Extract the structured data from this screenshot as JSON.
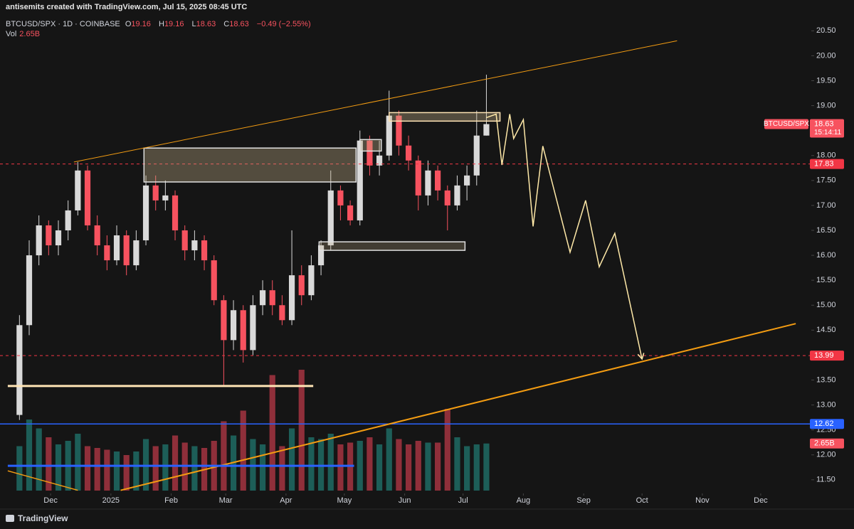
{
  "header": {
    "credit": "antisemits created with TradingView.com, Jul 15, 2025 08:45 UTC",
    "logo": "TradingView"
  },
  "chart_data": {
    "type": "candlestick",
    "title": "BTCUSD/SPX · 1D · COINBASE",
    "ohlc": [
      {
        "label": "O",
        "value": 19.16
      },
      {
        "label": "H",
        "value": 19.16
      },
      {
        "label": "L",
        "value": 18.63
      },
      {
        "label": "C",
        "value": 18.63
      }
    ],
    "change": "−0.49 (−2.55%)",
    "volume_label": "Vol",
    "volume_value": "2.65B",
    "x": [
      "2024-11-15",
      "2024-11-20",
      "2024-11-25",
      "2024-11-30",
      "2024-12-05",
      "2024-12-10",
      "2024-12-15",
      "2024-12-20",
      "2024-12-25",
      "2024-12-30",
      "2025-01-04",
      "2025-01-09",
      "2025-01-14",
      "2025-01-19",
      "2025-01-24",
      "2025-01-29",
      "2025-02-03",
      "2025-02-08",
      "2025-02-13",
      "2025-02-18",
      "2025-02-23",
      "2025-02-28",
      "2025-03-05",
      "2025-03-10",
      "2025-03-15",
      "2025-03-20",
      "2025-03-25",
      "2025-03-30",
      "2025-04-04",
      "2025-04-09",
      "2025-04-14",
      "2025-04-19",
      "2025-04-24",
      "2025-04-29",
      "2025-05-04",
      "2025-05-09",
      "2025-05-14",
      "2025-05-19",
      "2025-05-24",
      "2025-05-29",
      "2025-06-03",
      "2025-06-08",
      "2025-06-13",
      "2025-06-18",
      "2025-06-23",
      "2025-06-28",
      "2025-07-03",
      "2025-07-08",
      "2025-07-13"
    ],
    "opens": [
      12.8,
      14.6,
      16.0,
      16.6,
      16.2,
      16.5,
      16.9,
      17.7,
      16.6,
      16.2,
      15.9,
      16.4,
      15.8,
      16.3,
      17.4,
      17.1,
      17.2,
      16.5,
      16.1,
      16.3,
      15.9,
      15.1,
      14.3,
      14.9,
      14.1,
      15.0,
      15.3,
      15.0,
      14.7,
      15.6,
      15.2,
      15.8,
      16.2,
      17.3,
      17.0,
      16.7,
      18.3,
      17.8,
      18.0,
      18.8,
      18.2,
      17.9,
      17.2,
      17.7,
      17.3,
      17.0,
      17.4,
      17.6,
      18.4
    ],
    "highs": [
      14.8,
      16.3,
      16.8,
      16.7,
      16.7,
      17.1,
      17.87,
      17.8,
      16.8,
      16.4,
      16.6,
      16.5,
      16.5,
      17.6,
      17.6,
      17.5,
      17.3,
      16.6,
      16.5,
      16.4,
      16.0,
      15.2,
      15.1,
      15.0,
      15.2,
      15.5,
      15.5,
      15.2,
      16.5,
      15.8,
      16.0,
      16.3,
      17.7,
      17.4,
      17.1,
      18.5,
      18.4,
      18.3,
      19.3,
      18.9,
      18.4,
      18.0,
      17.9,
      17.8,
      17.4,
      17.6,
      17.8,
      18.9,
      19.62
    ],
    "lows": [
      12.7,
      14.4,
      15.8,
      16.0,
      16.0,
      16.3,
      16.8,
      16.5,
      16.0,
      15.7,
      15.8,
      15.6,
      15.7,
      16.2,
      16.9,
      16.9,
      16.3,
      15.9,
      15.9,
      15.7,
      15.0,
      13.4,
      14.1,
      13.85,
      14.0,
      14.8,
      14.8,
      14.6,
      14.6,
      15.0,
      15.1,
      15.6,
      16.1,
      16.7,
      16.6,
      16.6,
      17.6,
      17.6,
      17.9,
      18.0,
      17.7,
      16.9,
      17.0,
      17.1,
      16.5,
      16.9,
      17.1,
      17.4,
      18.4
    ],
    "closes": [
      14.6,
      16.0,
      16.6,
      16.2,
      16.5,
      16.9,
      17.7,
      16.6,
      16.2,
      15.9,
      16.4,
      15.8,
      16.3,
      17.4,
      17.1,
      17.2,
      16.5,
      16.1,
      16.3,
      15.9,
      15.1,
      14.3,
      14.9,
      14.1,
      15.0,
      15.3,
      15.0,
      14.7,
      15.6,
      15.2,
      15.8,
      16.2,
      17.3,
      17.0,
      16.7,
      18.3,
      17.8,
      18.0,
      18.8,
      18.2,
      17.9,
      17.2,
      17.7,
      17.3,
      17.0,
      17.4,
      17.6,
      18.4,
      18.63
    ],
    "volumes": [
      2.5,
      4.0,
      3.5,
      3.0,
      2.6,
      2.8,
      3.2,
      2.5,
      2.4,
      2.3,
      2.2,
      2.0,
      2.2,
      2.9,
      2.5,
      2.6,
      3.1,
      2.7,
      2.5,
      2.4,
      2.8,
      3.9,
      3.1,
      4.5,
      2.9,
      2.6,
      6.5,
      2.5,
      3.5,
      6.8,
      3.0,
      2.9,
      3.2,
      2.6,
      2.7,
      2.8,
      3.0,
      2.6,
      3.5,
      2.9,
      2.6,
      2.8,
      2.7,
      2.7,
      4.6,
      3.0,
      2.5,
      2.6,
      2.65
    ],
    "up_color": "#d9d9d9",
    "down_color": "#f7525f",
    "volume_up_color": "#1d5e58",
    "volume_down_color": "#8f2f3a",
    "volume_tag": "2.65B",
    "xlim": [
      "2024-11-05",
      "2025-12-27"
    ],
    "xticks": [
      {
        "value": "2024-12-01",
        "label": "Dec"
      },
      {
        "value": "2025-01-01",
        "label": "2025"
      },
      {
        "value": "2025-02-01",
        "label": "Feb"
      },
      {
        "value": "2025-03-01",
        "label": "Mar"
      },
      {
        "value": "2025-04-01",
        "label": "Apr"
      },
      {
        "value": "2025-05-01",
        "label": "May"
      },
      {
        "value": "2025-06-01",
        "label": "Jun"
      },
      {
        "value": "2025-07-01",
        "label": "Jul"
      },
      {
        "value": "2025-08-01",
        "label": "Aug"
      },
      {
        "value": "2025-09-01",
        "label": "Sep"
      },
      {
        "value": "2025-10-01",
        "label": "Oct"
      },
      {
        "value": "2025-11-01",
        "label": "Nov"
      },
      {
        "value": "2025-12-01",
        "label": "Dec"
      }
    ],
    "ylim": [
      10.97,
      20.69
    ],
    "yticks": [
      {
        "value": 11.5,
        "label": "11.50"
      },
      {
        "value": 12,
        "label": "12.00"
      },
      {
        "value": 12.5,
        "label": "12.50"
      },
      {
        "value": 13,
        "label": "13.00"
      },
      {
        "value": 13.5,
        "label": "13.50"
      },
      {
        "value": 14,
        "label": "14.00"
      },
      {
        "value": 14.5,
        "label": "14.50"
      },
      {
        "value": 15,
        "label": "15.00"
      },
      {
        "value": 15.5,
        "label": "15.50"
      },
      {
        "value": 16,
        "label": "16.00"
      },
      {
        "value": 16.5,
        "label": "16.50"
      },
      {
        "value": 17,
        "label": "17.00"
      },
      {
        "value": 17.5,
        "label": "17.50"
      },
      {
        "value": 18,
        "label": "18.00"
      },
      {
        "value": 18.5,
        "label": "18.50"
      },
      {
        "value": 19,
        "label": "19.00"
      },
      {
        "value": 19.5,
        "label": "19.50"
      },
      {
        "value": 20,
        "label": "20.00"
      },
      {
        "value": 20.5,
        "label": "20.50"
      }
    ],
    "price_tag": {
      "name": "BTCUSD/SPX",
      "price": 18.63,
      "countdown": "15:14:11",
      "color": "#f7525f"
    },
    "levels": [
      {
        "value": 17.83,
        "color": "#f23645",
        "style": "dashed"
      },
      {
        "value": 13.99,
        "color": "#f23645",
        "style": "dashed"
      },
      {
        "value": 12.62,
        "color": "#2962ff",
        "style": "solid"
      }
    ],
    "drawings": {
      "lines": [
        {
          "color": "#f39c12",
          "width": 1,
          "points": [
            [
              "2024-12-13",
              17.87
            ],
            [
              "2025-10-19",
              20.3
            ]
          ]
        },
        {
          "color": "#f39c12",
          "width": 2,
          "points": [
            [
              "2025-01-06",
              11.29
            ],
            [
              "2025-12-19",
              14.63
            ]
          ]
        },
        {
          "color": "#f39c12",
          "width": 1.5,
          "points": [
            [
              "2024-11-09",
              11.68
            ],
            [
              "2024-12-15",
              11.29
            ]
          ]
        },
        {
          "color": "#ffe4b5",
          "width": 3,
          "points": [
            [
              "2024-11-09",
              13.38
            ],
            [
              "2025-04-15",
              13.38
            ]
          ]
        },
        {
          "color": "#2962ff",
          "width": 3,
          "points": [
            [
              "2024-11-09",
              11.78
            ],
            [
              "2025-05-06",
              11.78
            ]
          ]
        }
      ],
      "boxes": [
        {
          "start": "2025-01-18",
          "end": "2025-05-07",
          "top": 18.15,
          "bottom": 17.47,
          "fill": "rgba(200,180,140,0.35)",
          "stroke": "#e0e0e0"
        },
        {
          "start": "2025-05-09",
          "end": "2025-05-20",
          "top": 18.32,
          "bottom": 18.09,
          "fill": "rgba(200,180,140,0.35)",
          "stroke": "#e0e0e0"
        },
        {
          "start": "2025-05-24",
          "end": "2025-07-20",
          "top": 18.86,
          "bottom": 18.69,
          "fill": "rgba(200,180,140,0.35)",
          "stroke": "#ffe4b5"
        },
        {
          "start": "2025-04-18",
          "end": "2025-07-02",
          "top": 16.27,
          "bottom": 16.1,
          "fill": "rgba(200,180,140,0.25)",
          "stroke": "#e0e0e0"
        }
      ],
      "projection": {
        "color": "#ffe9a8",
        "points": [
          [
            "2025-07-13",
            18.76
          ],
          [
            "2025-07-18",
            18.83
          ],
          [
            "2025-07-21",
            17.81
          ],
          [
            "2025-07-25",
            18.83
          ],
          [
            "2025-07-27",
            18.34
          ],
          [
            "2025-08-01",
            18.72
          ],
          [
            "2025-08-06",
            16.58
          ],
          [
            "2025-08-11",
            18.19
          ],
          [
            "2025-08-25",
            16.06
          ],
          [
            "2025-09-02",
            17.1
          ],
          [
            "2025-09-09",
            15.77
          ],
          [
            "2025-09-17",
            16.44
          ],
          [
            "2025-10-01",
            13.92
          ]
        ]
      }
    }
  }
}
